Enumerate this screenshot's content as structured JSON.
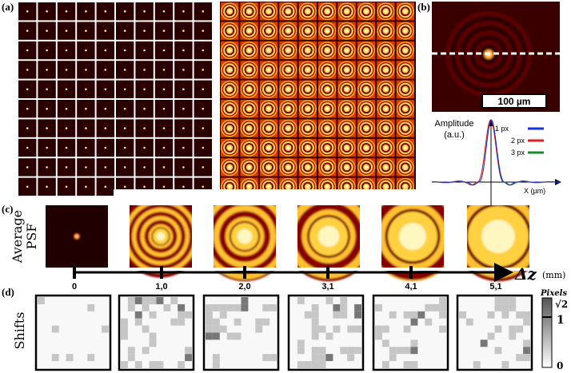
{
  "panels": {
    "a": {
      "label": "(a)"
    },
    "b": {
      "label": "(b)",
      "scale_bar": "100 µm",
      "y_axis_label": [
        "Amplitude",
        "(a.u.)"
      ],
      "x_axis_label": "X (µm)",
      "legend": [
        "1 px",
        "2 px",
        "3 px"
      ]
    },
    "c": {
      "label": "(c)",
      "row_label": [
        "Average",
        "PSF"
      ],
      "axis_label": "Δz",
      "axis_unit": "(mm)",
      "ticks": [
        "0",
        "1,0",
        "2,0",
        "3,1",
        "4,1",
        "5,1"
      ]
    },
    "d": {
      "label": "(d)",
      "row_label": "Shifts",
      "colorbar": {
        "title": "Pixels",
        "labels": [
          "√2",
          "1",
          "0"
        ]
      }
    }
  }
}
